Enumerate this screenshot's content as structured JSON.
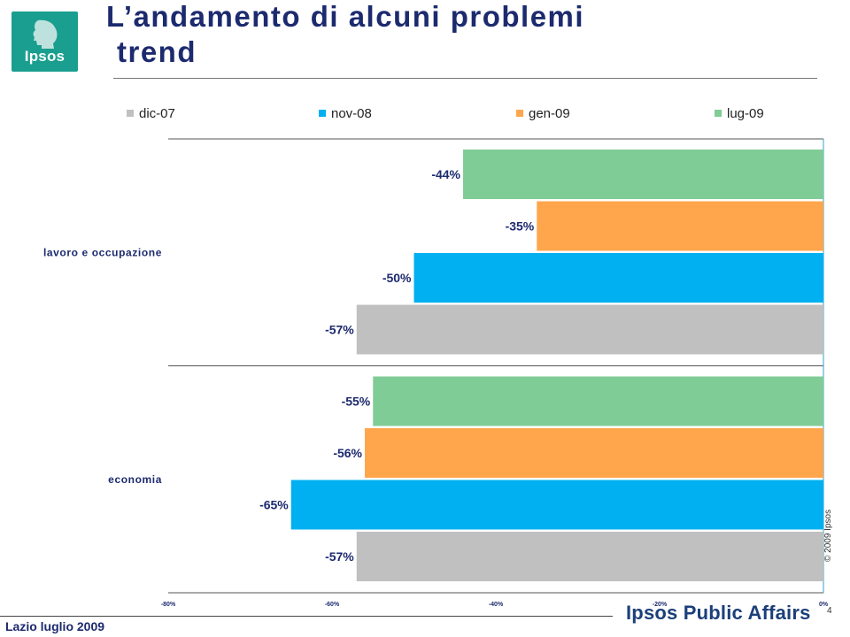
{
  "logo": {
    "text": "Ipsos"
  },
  "header": {
    "title_line1": "L’andamento di alcuni problemi",
    "title_line2": "trend"
  },
  "footer": {
    "left_text": "Lazio luglio 2009",
    "brand": "Ipsos Public Affairs",
    "page_number": "4",
    "copyright": "© 2009 Ipsos"
  },
  "colors": {
    "dic-07": "#c0c0c0",
    "nov-08": "#00b0f0",
    "gen-09": "#ffa64d",
    "lug-09": "#80cc96",
    "title": "#1c2a6e"
  },
  "chart_data": {
    "type": "bar",
    "orientation": "horizontal",
    "categories": [
      "lavoro e occupazione",
      "economia"
    ],
    "series": [
      {
        "name": "lug-09",
        "values": [
          -44,
          -55
        ],
        "labels": [
          "-44%",
          "-55%"
        ]
      },
      {
        "name": "gen-09",
        "values": [
          -35,
          -56
        ],
        "labels": [
          "-35%",
          "-56%"
        ]
      },
      {
        "name": "nov-08",
        "values": [
          -50,
          -65
        ],
        "labels": [
          "-50%",
          "-65%"
        ]
      },
      {
        "name": "dic-07",
        "values": [
          -57,
          -57
        ],
        "labels": [
          "-57%",
          "-57%"
        ]
      }
    ],
    "legend": [
      "dic-07",
      "nov-08",
      "gen-09",
      "lug-09"
    ],
    "xlim": [
      -80,
      0
    ],
    "xticks": [
      -80,
      -60,
      -40,
      -20,
      0
    ],
    "xtick_labels": [
      "-80%",
      "-60%",
      "-40%",
      "-20%",
      "0%"
    ],
    "legend_position": "top",
    "grid": false
  }
}
